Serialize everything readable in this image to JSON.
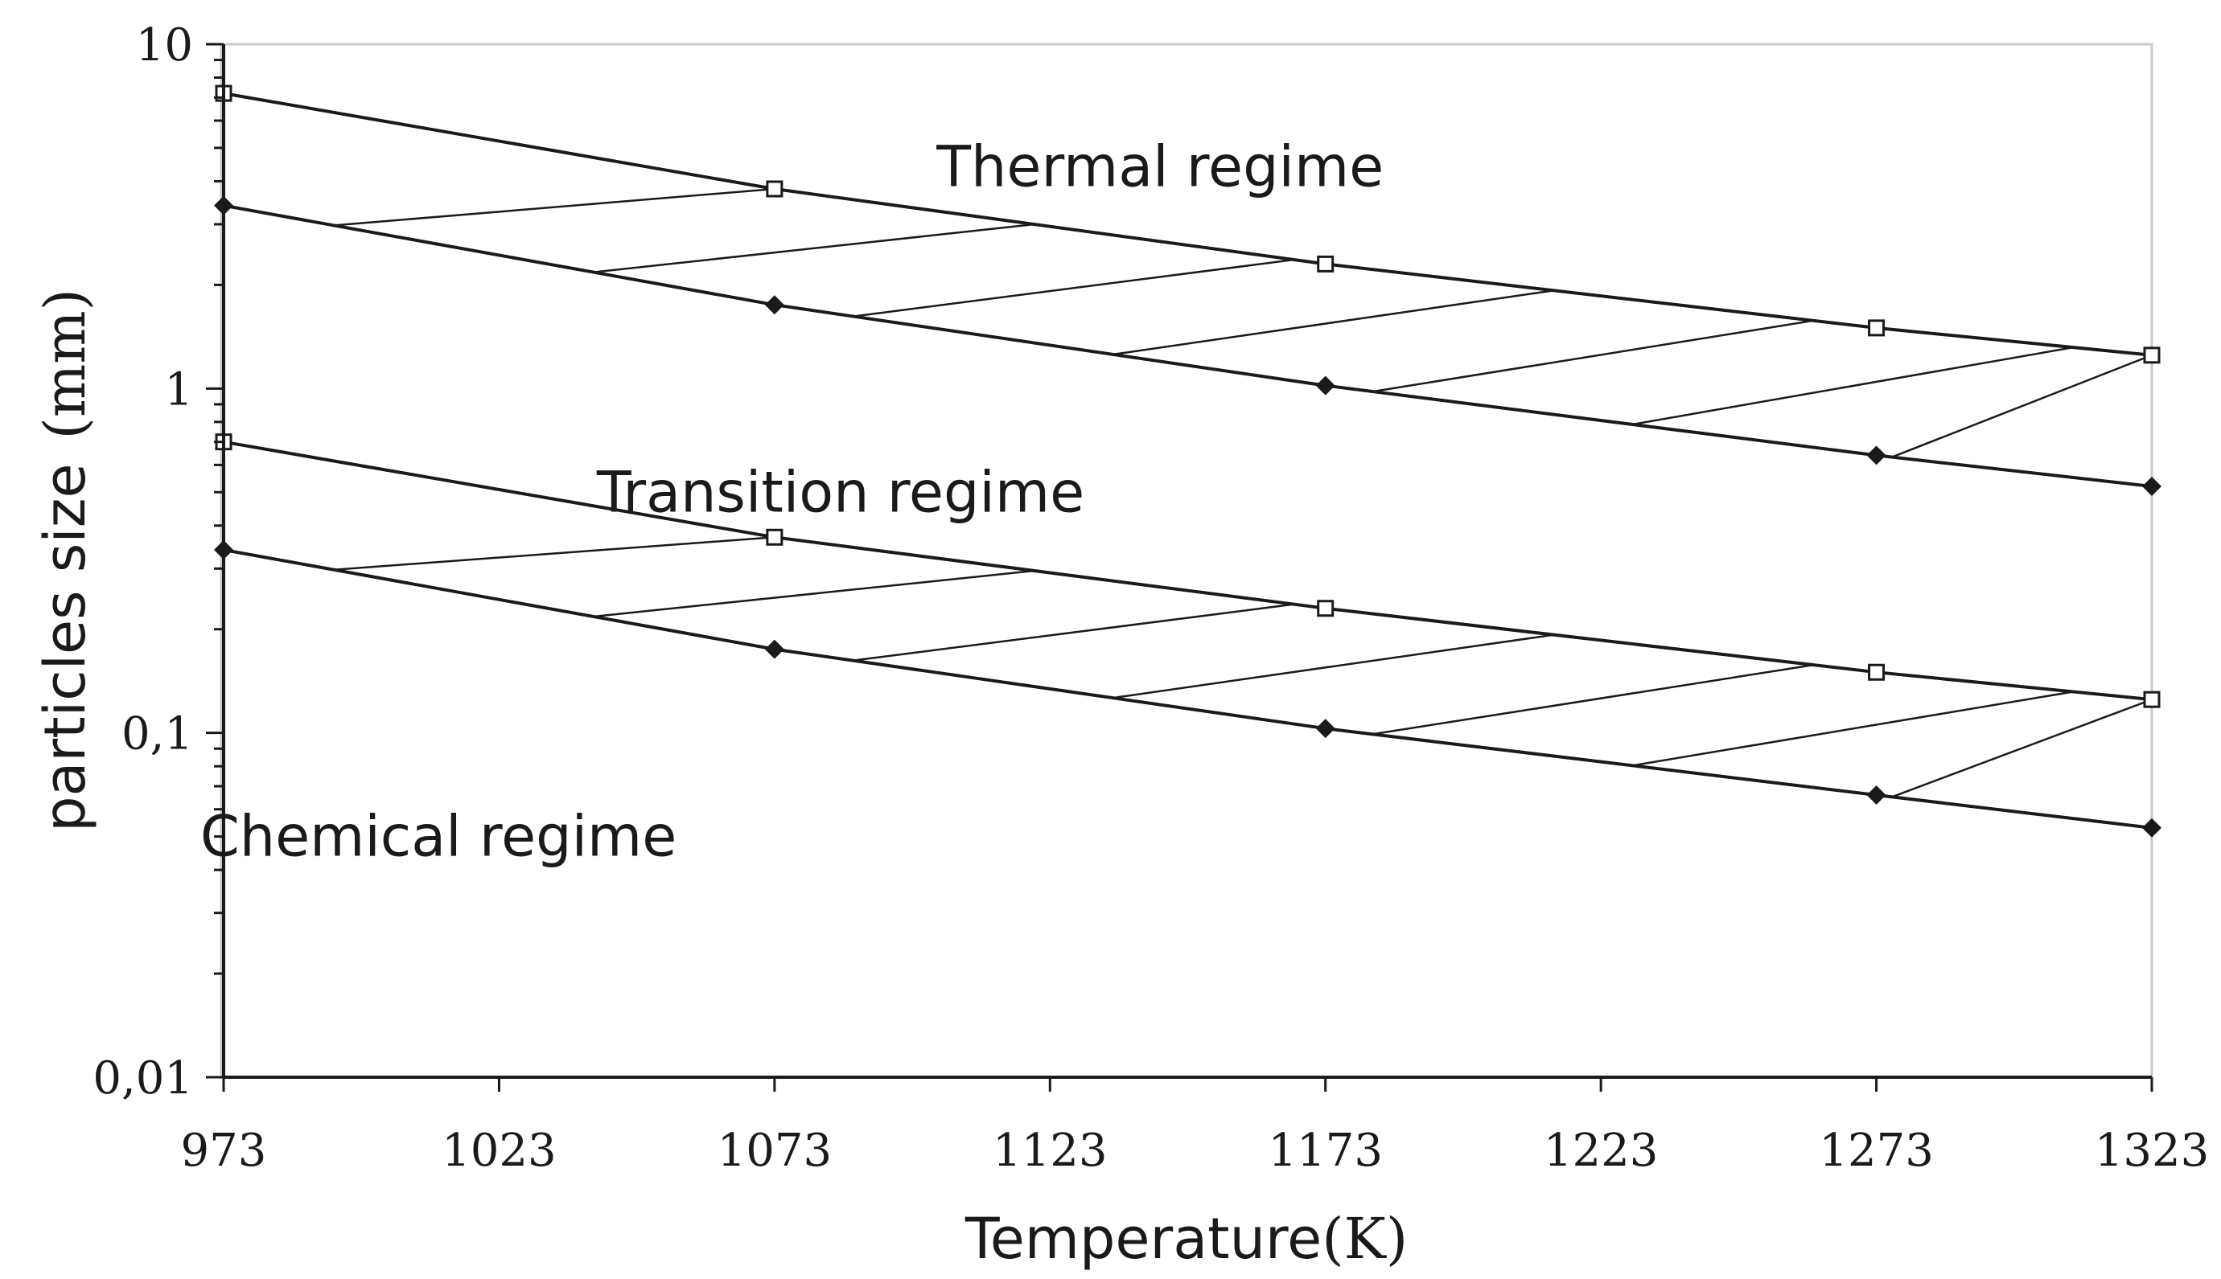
{
  "chart_data": {
    "type": "line",
    "title": "",
    "xlabel": "Temperature",
    "xlabel_unit": "(K)",
    "ylabel": "particles size",
    "ylabel_unit": "(mm)",
    "yscale": "log",
    "xlim": [
      973,
      1323
    ],
    "ylim": [
      0.01,
      10
    ],
    "x_ticks": [
      "973",
      "1023",
      "1073",
      "1123",
      "1173",
      "1223",
      "1273",
      "1323"
    ],
    "y_ticks": [
      "0,01",
      "0,1",
      "1",
      "10"
    ],
    "grid": false,
    "legend": "none",
    "x": [
      973,
      1073,
      1173,
      1273,
      1323
    ],
    "series": [
      {
        "marker": "open-square",
        "values": [
          7.2,
          3.8,
          2.3,
          1.5,
          1.25
        ]
      },
      {
        "marker": "filled-diamond",
        "values": [
          3.4,
          1.75,
          1.02,
          0.64,
          0.52
        ]
      },
      {
        "marker": "open-square",
        "values": [
          0.7,
          0.37,
          0.23,
          0.15,
          0.125
        ]
      },
      {
        "marker": "filled-diamond",
        "values": [
          0.34,
          0.175,
          0.103,
          0.066,
          0.053
        ]
      }
    ],
    "hatched_bands": [
      [
        0,
        1
      ],
      [
        2,
        3
      ]
    ],
    "annotations": [
      {
        "text": "Thermal regime",
        "x": 1143,
        "y": 4.4
      },
      {
        "text": "Transition regime",
        "x": 1085,
        "y": 0.5
      },
      {
        "text": "Chemical regime",
        "x": 1012,
        "y": 0.05
      }
    ],
    "colors": {
      "line": "#1a1a1a",
      "axis": "#1a1a1a",
      "ylabel": "#b07a1e",
      "background": "#ffffff"
    }
  }
}
